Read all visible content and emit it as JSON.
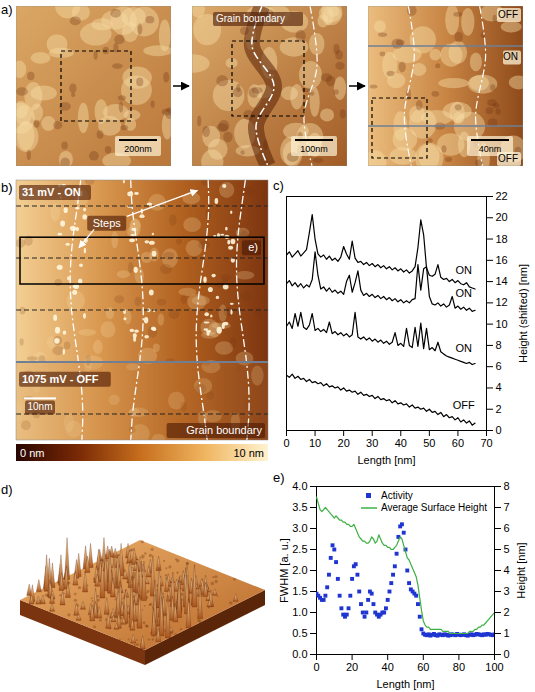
{
  "panel_labels": {
    "a": "a)",
    "b": "b)",
    "c": "c)",
    "d": "d)",
    "e": "e)"
  },
  "panel_a": {
    "images": [
      {
        "scale_bar": "200nm"
      },
      {
        "scale_bar": "100nm",
        "annotation": "Grain boundary"
      },
      {
        "scale_bar": "40nm",
        "regions": [
          "OFF",
          "ON",
          "OFF"
        ]
      }
    ]
  },
  "panel_b": {
    "on_label": "31 mV - ON",
    "off_label": "1075 mV - OFF",
    "steps_label": "Steps",
    "grain_boundary_label": "Grain boundary",
    "inset_label": "e)",
    "scale_bar": "10nm",
    "colorbar_labels": [
      "0 nm",
      "10 nm"
    ]
  },
  "chart_data": [
    {
      "type": "line",
      "x_label": "Length [nm]",
      "y_label": "Height (shifted) [nm]",
      "x": [
        0,
        1,
        2,
        3,
        4,
        5,
        6,
        7,
        8,
        9,
        10,
        11,
        12,
        13,
        14,
        15,
        16,
        17,
        18,
        19,
        20,
        21,
        22,
        23,
        24,
        25,
        26,
        27,
        28,
        29,
        30,
        31,
        32,
        33,
        34,
        35,
        36,
        37,
        38,
        39,
        40,
        41,
        42,
        43,
        44,
        45,
        46,
        47,
        48,
        49,
        50,
        51,
        52,
        53,
        54,
        55,
        56,
        57,
        58,
        59,
        60,
        61,
        62,
        63,
        64,
        65,
        66
      ],
      "series": [
        {
          "name": "ON",
          "color": "#000000",
          "values": [
            16.5,
            16.8,
            16.3,
            16.6,
            16.9,
            16.4,
            16.7,
            17.0,
            18.6,
            20.3,
            18.0,
            16.6,
            16.3,
            16.5,
            16.1,
            16.4,
            16.0,
            16.2,
            15.9,
            16.3,
            17.3,
            16.6,
            16.1,
            17.8,
            16.2,
            15.8,
            15.9,
            15.6,
            15.8,
            15.5,
            15.7,
            15.4,
            15.6,
            15.3,
            15.5,
            15.2,
            15.4,
            15.1,
            15.3,
            15.0,
            15.2,
            14.9,
            15.1,
            14.8,
            15.0,
            15.4,
            17.2,
            19.8,
            18.4,
            15.3,
            14.6,
            14.5,
            14.7,
            15.6,
            14.4,
            14.2,
            14.3,
            14.0,
            14.2,
            13.9,
            14.1,
            13.8,
            13.7,
            13.9,
            13.5,
            13.4,
            13.3
          ]
        },
        {
          "name": "ON",
          "color": "#000000",
          "values": [
            13.8,
            14.1,
            13.6,
            13.9,
            13.5,
            13.8,
            13.4,
            13.7,
            13.5,
            14.2,
            16.8,
            14.6,
            13.3,
            13.5,
            13.1,
            13.4,
            13.0,
            13.2,
            12.9,
            13.1,
            12.8,
            14.0,
            14.6,
            13.0,
            13.9,
            15.0,
            13.2,
            12.7,
            12.9,
            12.6,
            12.8,
            12.5,
            12.7,
            12.4,
            12.6,
            12.3,
            12.5,
            12.2,
            12.4,
            12.1,
            12.3,
            12.0,
            12.2,
            12.0,
            12.3,
            12.4,
            15.6,
            13.2,
            15.2,
            15.4,
            12.6,
            11.9,
            11.8,
            12.0,
            11.7,
            11.9,
            11.6,
            11.8,
            12.6,
            11.5,
            11.7,
            11.4,
            11.6,
            11.3,
            11.5,
            11.2,
            11.3
          ]
        },
        {
          "name": "ON",
          "color": "#000000",
          "values": [
            9.8,
            10.2,
            9.6,
            11.0,
            9.8,
            11.1,
            9.7,
            9.5,
            9.9,
            11.0,
            9.4,
            9.6,
            9.3,
            9.5,
            9.2,
            10.2,
            9.1,
            9.3,
            9.0,
            9.2,
            8.9,
            9.1,
            8.8,
            9.0,
            11.1,
            8.8,
            8.6,
            8.8,
            8.5,
            8.7,
            8.4,
            8.6,
            8.3,
            8.5,
            8.2,
            8.4,
            8.1,
            8.3,
            9.2,
            8.0,
            8.2,
            7.9,
            9.6,
            8.0,
            7.8,
            9.7,
            7.9,
            10.1,
            7.7,
            9.6,
            7.6,
            7.8,
            7.5,
            8.3,
            7.4,
            7.2,
            7.0,
            6.9,
            6.8,
            6.7,
            6.6,
            6.5,
            6.4,
            6.3,
            6.4,
            6.2,
            6.3
          ]
        },
        {
          "name": "OFF",
          "color": "#000000",
          "values": [
            5.2,
            5.0,
            5.3,
            4.9,
            5.1,
            4.8,
            4.9,
            4.6,
            4.8,
            4.5,
            4.6,
            4.4,
            4.5,
            4.2,
            4.4,
            4.1,
            4.2,
            4.0,
            4.1,
            3.8,
            4.0,
            3.7,
            3.8,
            3.6,
            3.7,
            3.4,
            3.6,
            3.3,
            3.4,
            3.2,
            3.3,
            3.0,
            3.2,
            2.9,
            3.0,
            2.8,
            2.9,
            2.6,
            2.8,
            2.5,
            2.6,
            2.4,
            2.5,
            2.2,
            2.4,
            2.1,
            2.2,
            2.0,
            2.1,
            1.8,
            2.0,
            1.7,
            1.8,
            1.5,
            1.7,
            1.3,
            1.5,
            1.2,
            1.3,
            1.0,
            1.2,
            0.8,
            1.0,
            0.7,
            0.9,
            0.5,
            0.7
          ]
        }
      ],
      "xlim": [
        0,
        70
      ],
      "xticks": [
        0,
        10,
        20,
        30,
        40,
        50,
        60,
        70
      ],
      "ylim": [
        0,
        22
      ],
      "yticks": [
        0,
        2,
        4,
        6,
        8,
        10,
        12,
        14,
        16,
        18,
        20,
        22
      ]
    },
    {
      "type": "line",
      "x_label": "Length [nm]",
      "y_label": "FWHM [a. u.]",
      "y2_label": "Height [nm]",
      "x": [
        0,
        1,
        2,
        3,
        4,
        5,
        6,
        7,
        8,
        9,
        10,
        11,
        12,
        13,
        14,
        15,
        16,
        17,
        18,
        19,
        20,
        21,
        22,
        23,
        24,
        25,
        26,
        27,
        28,
        29,
        30,
        31,
        32,
        33,
        34,
        35,
        36,
        37,
        38,
        39,
        40,
        41,
        42,
        43,
        44,
        45,
        46,
        47,
        48,
        49,
        50,
        51,
        52,
        53,
        54,
        55,
        56,
        57,
        58,
        59,
        60,
        61,
        62,
        63,
        64,
        65,
        66,
        67,
        68,
        69,
        70,
        71,
        72,
        73,
        74,
        75,
        76,
        77,
        78,
        79,
        80,
        81,
        82,
        83,
        84,
        85,
        86,
        87,
        88,
        89,
        90,
        91,
        92,
        93,
        94,
        95,
        96,
        97,
        98,
        99,
        100
      ],
      "series": [
        {
          "name": "Activity",
          "color": "#1f35d1",
          "type": "scatter",
          "marker": "square",
          "values": [
            1.45,
            1.4,
            1.35,
            1.3,
            1.3,
            1.4,
            1.6,
            1.9,
            2.3,
            2.6,
            2.5,
            2.2,
            1.8,
            1.4,
            1.1,
            0.95,
            0.9,
            0.95,
            1.1,
            1.4,
            1.8,
            2.1,
            2.15,
            1.9,
            1.5,
            1.2,
            1.0,
            0.9,
            1.0,
            1.3,
            1.5,
            1.45,
            1.2,
            1.0,
            0.95,
            0.9,
            0.95,
            1.0,
            1.0,
            1.1,
            1.3,
            1.5,
            1.7,
            1.9,
            2.1,
            2.4,
            2.8,
            3.05,
            3.1,
            2.9,
            2.5,
            2.0,
            1.7,
            1.55,
            1.5,
            1.45,
            1.4,
            1.2,
            0.9,
            0.6,
            0.5,
            0.47,
            0.46,
            0.48,
            0.45,
            0.47,
            0.49,
            0.46,
            0.45,
            0.48,
            0.47,
            0.46,
            0.48,
            0.47,
            0.45,
            0.46,
            0.48,
            0.47,
            0.46,
            0.49,
            0.47,
            0.46,
            0.47,
            0.48,
            0.46,
            0.45,
            0.47,
            0.48,
            0.46,
            0.47,
            0.49,
            0.48,
            0.47,
            0.46,
            0.48,
            0.47,
            0.49,
            0.48,
            0.47,
            0.46,
            0.48
          ]
        },
        {
          "name": "Average Surface Height",
          "color": "#3cb043",
          "type": "line",
          "axis": "y2",
          "values": [
            7.5,
            7.2,
            6.9,
            6.8,
            6.9,
            7.0,
            6.9,
            6.8,
            6.7,
            6.6,
            6.5,
            6.6,
            6.5,
            6.4,
            6.4,
            6.3,
            6.3,
            6.2,
            6.2,
            6.1,
            6.1,
            6.2,
            6.0,
            5.8,
            5.6,
            5.5,
            5.4,
            5.4,
            5.3,
            5.3,
            5.4,
            5.6,
            5.5,
            5.3,
            5.4,
            5.7,
            5.5,
            5.3,
            5.2,
            5.2,
            5.1,
            5.1,
            5.0,
            5.0,
            5.1,
            5.2,
            5.4,
            5.6,
            5.5,
            5.2,
            4.9,
            4.6,
            4.5,
            4.3,
            4.1,
            3.9,
            3.7,
            3.3,
            2.7,
            2.1,
            1.6,
            1.4,
            1.3,
            1.3,
            1.2,
            1.2,
            1.2,
            1.2,
            1.2,
            1.2,
            1.2,
            1.1,
            1.1,
            1.1,
            1.1,
            1.0,
            1.0,
            1.0,
            1.0,
            1.0,
            1.0,
            1.0,
            1.0,
            1.0,
            1.0,
            1.0,
            1.1,
            1.1,
            1.1,
            1.2,
            1.2,
            1.3,
            1.3,
            1.4,
            1.4,
            1.5,
            1.6,
            1.7,
            1.8,
            1.9,
            2.0
          ]
        }
      ],
      "xlim": [
        0,
        100
      ],
      "xticks": [
        0,
        20,
        40,
        60,
        80,
        100
      ],
      "ylim": [
        0,
        4
      ],
      "yticks": [
        {
          "value": 0,
          "label": "0.0"
        },
        0.5,
        {
          "value": 1,
          "label": "1.0"
        },
        1.5,
        {
          "value": 2,
          "label": "2.0"
        },
        2.5,
        {
          "value": 3,
          "label": "3.0"
        },
        3.5,
        {
          "value": 4,
          "label": "4.0"
        }
      ],
      "y2lim": [
        0,
        8
      ],
      "y2ticks": [
        0,
        1,
        2,
        3,
        4,
        5,
        6,
        7,
        8
      ],
      "legend": "upper right"
    }
  ]
}
